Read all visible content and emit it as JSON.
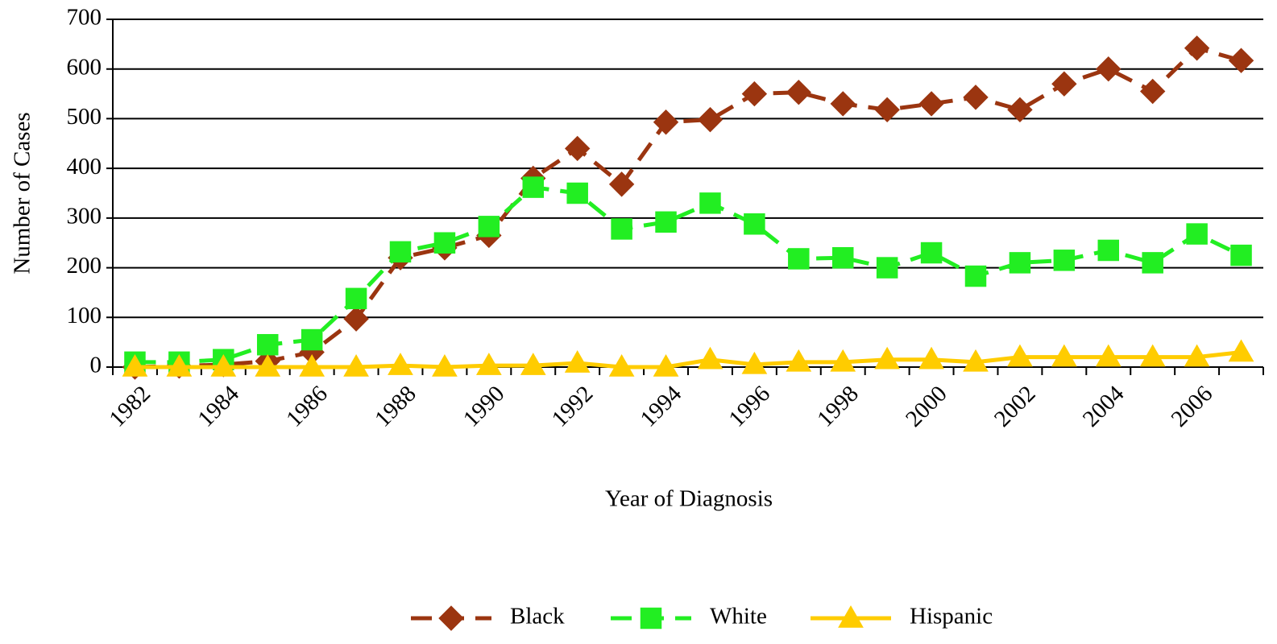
{
  "chart_data": {
    "type": "line",
    "xlabel": "Year of Diagnosis",
    "ylabel": "Number of Cases",
    "categories": [
      "1982",
      null,
      "1984",
      null,
      "1986",
      null,
      "1988",
      null,
      "1990",
      null,
      "1992",
      null,
      "1994",
      null,
      "1996",
      null,
      "1998",
      null,
      "2000",
      null,
      "2002",
      null,
      "2004",
      null,
      "2006",
      null
    ],
    "series": [
      {
        "name": "Black",
        "color": "#9b3510",
        "dash": true,
        "marker": "diamond",
        "values": [
          0,
          2,
          5,
          12,
          30,
          97,
          220,
          240,
          265,
          380,
          440,
          368,
          493,
          498,
          550,
          553,
          530,
          518,
          530,
          543,
          518,
          570,
          600,
          555,
          642,
          617
        ]
      },
      {
        "name": "White",
        "color": "#22ee22",
        "dash": true,
        "marker": "square",
        "values": [
          10,
          10,
          15,
          45,
          55,
          138,
          232,
          250,
          283,
          362,
          350,
          278,
          292,
          330,
          288,
          218,
          220,
          200,
          230,
          183,
          210,
          215,
          235,
          210,
          268,
          225
        ]
      },
      {
        "name": "Hispanic",
        "color": "#ffcc00",
        "dash": false,
        "marker": "triangle",
        "values": [
          0,
          0,
          0,
          0,
          0,
          0,
          3,
          0,
          3,
          3,
          8,
          0,
          0,
          15,
          5,
          10,
          10,
          15,
          15,
          10,
          20,
          20,
          20,
          20,
          20,
          30
        ]
      }
    ],
    "ylim": [
      0,
      700
    ],
    "yticks": [
      0,
      100,
      200,
      300,
      400,
      500,
      600,
      700
    ],
    "grid": true,
    "legend": "bottom"
  }
}
